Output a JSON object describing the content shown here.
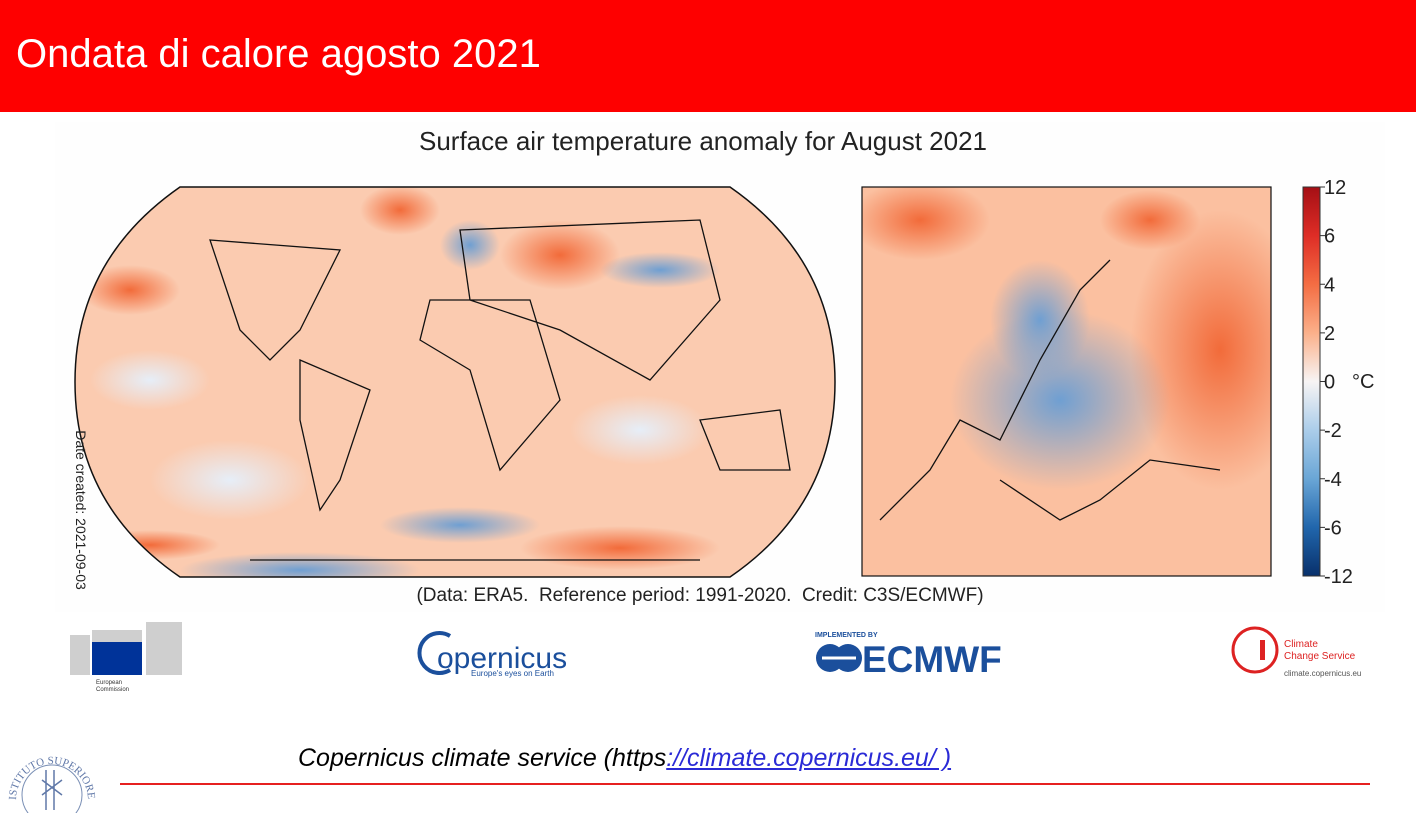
{
  "header": {
    "title": "Ondata di calore agosto 2021"
  },
  "figure": {
    "title": "Surface air temperature anomaly for August 2021",
    "date_created": "Date created: 2021-09-03",
    "credit": "(Data: ERA5.  Reference period: 1991-2020.  Credit: C3S/ECMWF)",
    "colorbar": {
      "ticks": [
        12,
        6,
        4,
        2,
        0,
        -2,
        -4,
        -6,
        -12
      ],
      "unit": "°C"
    }
  },
  "logos": {
    "european_commission_1": "European",
    "european_commission_2": "Commission",
    "copernicus": "opernicus",
    "copernicus_tagline": "Europe's eyes on Earth",
    "ecmwf_implemented": "IMPLEMENTED BY",
    "ecmwf": "ECMWF",
    "c3s_1": "Climate",
    "c3s_2": "Change Service",
    "c3s_url": "climate.copernicus.eu"
  },
  "footer": {
    "text": "Copernicus climate service (https",
    "link": "://climate.copernicus.eu/ )",
    "institute": "ISTITUTO SUPERIORE DI SANITÀ"
  }
}
